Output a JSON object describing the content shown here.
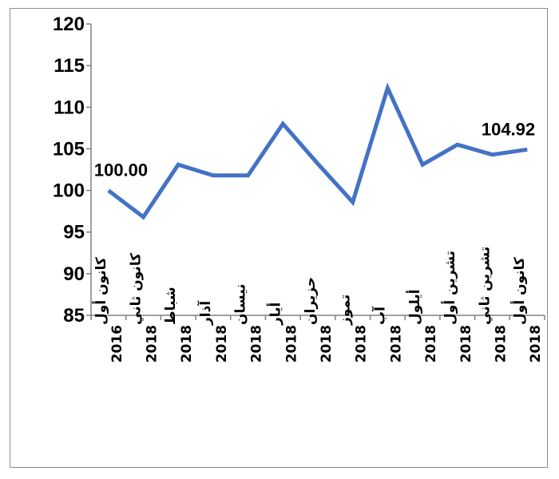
{
  "chart_data": {
    "type": "line",
    "title": "",
    "xlabel": "",
    "ylabel": "",
    "ylim": [
      85,
      120
    ],
    "yticks": [
      85,
      90,
      95,
      100,
      105,
      110,
      115,
      120
    ],
    "ytick_labels": [
      "85",
      "90",
      "95",
      "100",
      "105",
      "110",
      "115",
      "120"
    ],
    "grid": false,
    "legend": "none",
    "line_color": "#4472c4",
    "categories": [
      [
        "كانون أول",
        "2016"
      ],
      [
        "كانون ثاني",
        "2018"
      ],
      [
        "شباط",
        "2018"
      ],
      [
        "آذار",
        "2018"
      ],
      [
        "نيسان",
        "2018"
      ],
      [
        "أيار",
        "2018"
      ],
      [
        "حزيران",
        "2018"
      ],
      [
        "تموز",
        "2018"
      ],
      [
        "آب",
        "2018"
      ],
      [
        "أيلول",
        "2018"
      ],
      [
        "تشرين أول",
        "2018"
      ],
      [
        "تشرين ثاني",
        "2018"
      ],
      [
        "كانون أول",
        "2018"
      ]
    ],
    "series": [
      {
        "values": [
          100.0,
          96.8,
          103.1,
          101.8,
          101.8,
          108.0,
          103.2,
          98.6,
          112.3,
          103.1,
          105.5,
          104.3,
          104.92
        ]
      }
    ],
    "data_labels": [
      {
        "index": 0,
        "text": "100.00"
      },
      {
        "index": 12,
        "text": "104.92"
      }
    ]
  }
}
